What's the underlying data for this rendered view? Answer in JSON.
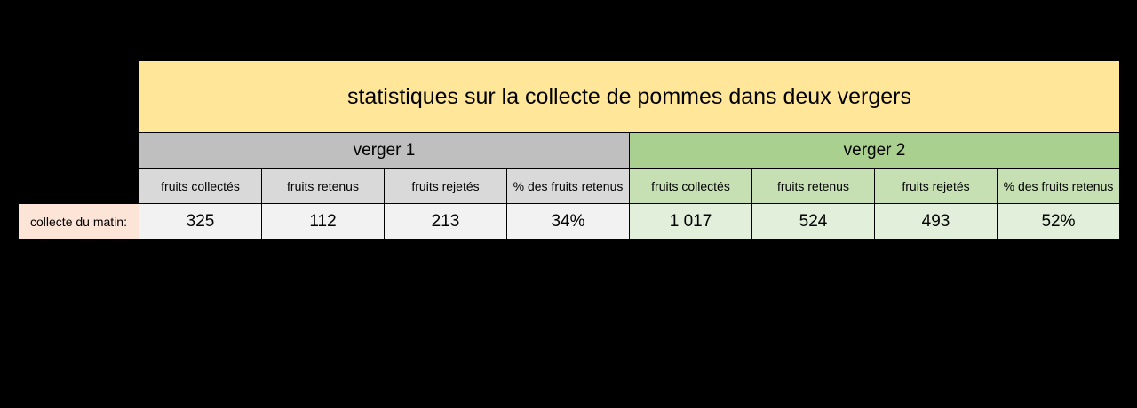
{
  "title": "statistiques sur la collecte de pommes dans deux vergers",
  "groups": [
    {
      "name": "verger 1",
      "headers": [
        "fruits collectés",
        "fruits retenus",
        "fruits rejetés",
        "% des fruits retenus"
      ],
      "values": [
        "325",
        "112",
        "213",
        "34%"
      ]
    },
    {
      "name": "verger 2",
      "headers": [
        "fruits collectés",
        "fruits retenus",
        "fruits rejetés",
        "% des fruits retenus"
      ],
      "values": [
        "1 017",
        "524",
        "493",
        "52%"
      ]
    }
  ],
  "row_label": "collecte du matin:",
  "colors": {
    "title_bg": "#ffe699",
    "group1_bg": "#bfbfbf",
    "group2_bg": "#a9d08e",
    "header1_bg": "#d9d9d9",
    "header2_bg": "#c6e0b4",
    "values1_bg": "#f2f2f2",
    "values2_bg": "#e2efda",
    "row_label_bg": "#fce4d6"
  }
}
